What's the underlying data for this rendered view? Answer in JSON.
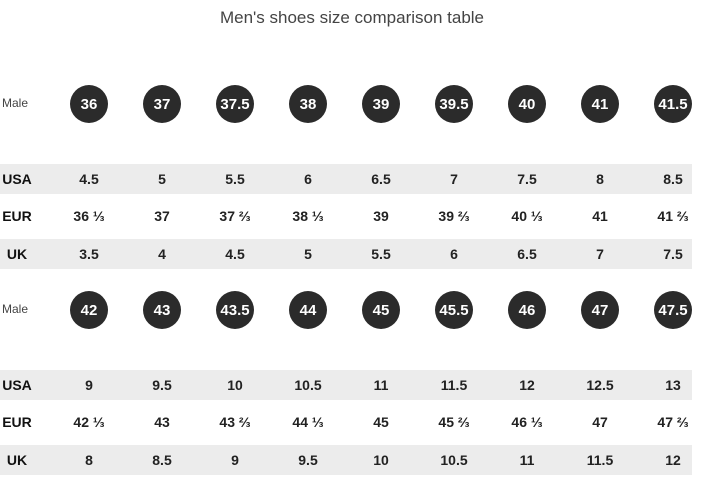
{
  "title": "Men's shoes size comparison table",
  "sections": [
    {
      "male_label": "Male",
      "sizes": [
        "36",
        "37",
        "37.5",
        "38",
        "39",
        "39.5",
        "40",
        "41",
        "41.5"
      ],
      "rows": [
        {
          "label": "USA",
          "values": [
            "4.5",
            "5",
            "5.5",
            "6",
            "6.5",
            "7",
            "7.5",
            "8",
            "8.5"
          ]
        },
        {
          "label": "EUR",
          "values": [
            "36 ⅓",
            "37",
            "37 ⅔",
            "38 ⅓",
            "39",
            "39 ⅔",
            "40 ⅓",
            "41",
            "41 ⅔"
          ]
        },
        {
          "label": "UK",
          "values": [
            "3.5",
            "4",
            "4.5",
            "5",
            "5.5",
            "6",
            "6.5",
            "7",
            "7.5"
          ]
        }
      ]
    },
    {
      "male_label": "Male",
      "sizes": [
        "42",
        "43",
        "43.5",
        "44",
        "45",
        "45.5",
        "46",
        "47",
        "47.5"
      ],
      "rows": [
        {
          "label": "USA",
          "values": [
            "9",
            "9.5",
            "10",
            "10.5",
            "11",
            "11.5",
            "12",
            "12.5",
            "13"
          ]
        },
        {
          "label": "EUR",
          "values": [
            "42 ⅓",
            "43",
            "43 ⅔",
            "44 ⅓",
            "45",
            "45 ⅔",
            "46 ⅓",
            "47",
            "47 ⅔"
          ]
        },
        {
          "label": "UK",
          "values": [
            "8",
            "8.5",
            "9",
            "9.5",
            "10",
            "10.5",
            "11",
            "11.5",
            "12"
          ]
        }
      ]
    }
  ]
}
